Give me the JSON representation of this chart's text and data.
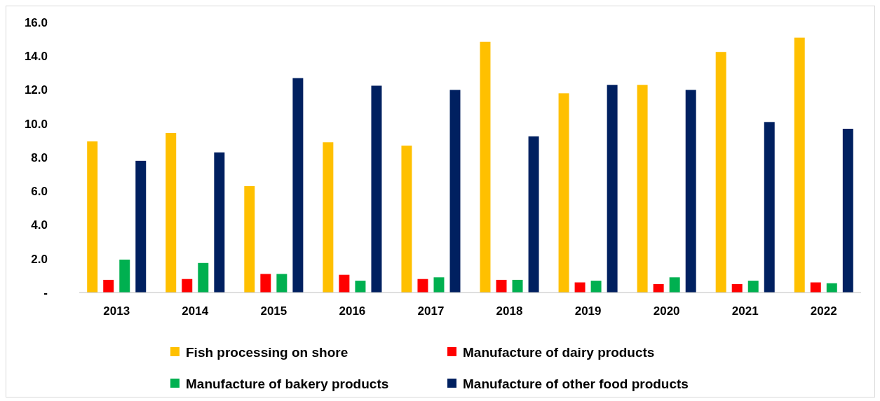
{
  "chart_data": {
    "type": "bar",
    "categories": [
      "2013",
      "2014",
      "2015",
      "2016",
      "2017",
      "2018",
      "2019",
      "2020",
      "2021",
      "2022"
    ],
    "series": [
      {
        "name": "Fish processing on shore",
        "color": "#ffc000",
        "values": [
          8.95,
          9.45,
          6.3,
          8.9,
          8.7,
          14.85,
          11.8,
          12.3,
          14.25,
          15.1
        ]
      },
      {
        "name": "Manufacture of dairy products",
        "color": "#ff0000",
        "values": [
          0.75,
          0.8,
          1.1,
          1.05,
          0.8,
          0.75,
          0.6,
          0.5,
          0.5,
          0.6
        ]
      },
      {
        "name": "Manufacture of bakery products",
        "color": "#00b050",
        "values": [
          1.95,
          1.75,
          1.1,
          0.7,
          0.9,
          0.75,
          0.7,
          0.9,
          0.7,
          0.55
        ]
      },
      {
        "name": "Manufacture of other food products",
        "color": "#002060",
        "values": [
          7.8,
          8.3,
          12.7,
          12.25,
          12.0,
          9.25,
          12.3,
          12.0,
          10.1,
          9.7
        ]
      }
    ],
    "ylim": [
      0,
      16
    ],
    "yticks": [
      {
        "value": 0,
        "label": "-"
      },
      {
        "value": 2,
        "label": "2.0"
      },
      {
        "value": 4,
        "label": "4.0"
      },
      {
        "value": 6,
        "label": "6.0"
      },
      {
        "value": 8,
        "label": "8.0"
      },
      {
        "value": 10,
        "label": "10.0"
      },
      {
        "value": 12,
        "label": "12.0"
      },
      {
        "value": 14,
        "label": "14.0"
      },
      {
        "value": 16,
        "label": "16.0"
      }
    ],
    "legend": "bottom",
    "grid": false
  }
}
